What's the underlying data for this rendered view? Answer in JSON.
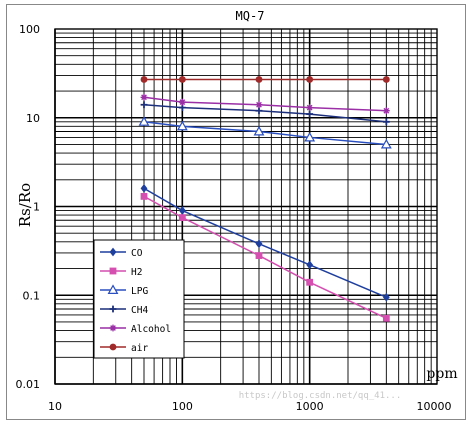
{
  "chart_data": {
    "type": "line",
    "title": "MQ-7",
    "xlabel": "ppm",
    "ylabel": "Rs/Ro",
    "x_scale": "log",
    "y_scale": "log",
    "xlim": [
      10,
      10000
    ],
    "ylim": [
      0.01,
      100
    ],
    "x_ticks": [
      "10",
      "100",
      "1000",
      "10000"
    ],
    "y_ticks": [
      "100",
      "10",
      "1",
      "0.1",
      "0.01"
    ],
    "grid": true,
    "legend_position": "bottom-left",
    "series": [
      {
        "name": "CO",
        "color": "#1f3f9e",
        "marker": "diamond",
        "x": [
          50,
          100,
          400,
          1000,
          4000
        ],
        "y": [
          1.6,
          0.9,
          0.38,
          0.22,
          0.095
        ]
      },
      {
        "name": "H2",
        "color": "#d44fb0",
        "marker": "square",
        "x": [
          50,
          100,
          400,
          1000,
          4000
        ],
        "y": [
          1.3,
          0.75,
          0.28,
          0.14,
          0.055
        ]
      },
      {
        "name": "LPG",
        "color": "#2a4fbf",
        "marker": "triangle-open",
        "x": [
          50,
          100,
          400,
          1000,
          4000
        ],
        "y": [
          9,
          8,
          7,
          6,
          5
        ]
      },
      {
        "name": "CH4",
        "color": "#1c2f7a",
        "marker": "plus",
        "x": [
          50,
          100,
          400,
          1000,
          4000
        ],
        "y": [
          14,
          13,
          12,
          11,
          9
        ]
      },
      {
        "name": "Alcohol",
        "color": "#9a2fa6",
        "marker": "star",
        "x": [
          50,
          100,
          400,
          1000,
          4000
        ],
        "y": [
          17,
          15,
          14,
          13,
          12
        ]
      },
      {
        "name": "air",
        "color": "#a02a2a",
        "marker": "circle",
        "x": [
          50,
          100,
          400,
          1000,
          4000
        ],
        "y": [
          27,
          27,
          27,
          27,
          27
        ]
      }
    ]
  },
  "legend_labels": [
    "CO",
    "H2",
    "LPG",
    "CH4",
    "Alcohol",
    "air"
  ],
  "watermark": "https://blog.csdn.net/qq_41..."
}
